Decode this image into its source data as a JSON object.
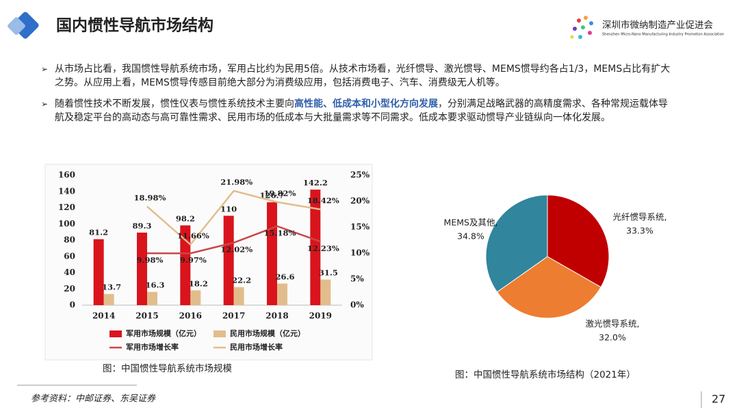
{
  "header": {
    "title": "国内惯性导航市场结构",
    "org_name": "深圳市微纳制造产业促进会",
    "org_name_en": "Shenzhen Micro-Nano Manufacturing Industry Promotion Association"
  },
  "bullets": [
    [
      "从市场占比看，我国惯性导航系统市场，军用占比约为民用5倍。从技术市场看，光纤惯导、激光惯导、MEMS惯导约各占1/3，MEMS占比有扩大之势。从应用上看，MEMS惯导传感目前绝大部分为消费级应用，包括消费电子、汽车、消费级无人机等。"
    ],
    [
      "随着惯性技术不断发展，惯性仪表与惯性系统技术主要向",
      "高性能、低成本和小型化方向发展",
      "，分别满足战略武器的高精度需求、各种常规运载体导航及稳定平台的高动态与高可靠性需求、民用市场的低成本与大批量需求等不同需求。低成本要求驱动惯导产业链纵向一体化发展。"
    ]
  ],
  "chart_data": [
    {
      "type": "bar-line",
      "caption": "图：中国惯性导航系统市场规模",
      "categories": [
        "2014",
        "2015",
        "2016",
        "2017",
        "2018",
        "2019"
      ],
      "ylim": [
        0,
        160
      ],
      "yticks": [
        0,
        20,
        40,
        60,
        80,
        100,
        120,
        140,
        160
      ],
      "y2lim": [
        0,
        25
      ],
      "y2ticks": [
        {
          "value": 0,
          "label": "0%"
        },
        {
          "value": 5,
          "label": "5%"
        },
        {
          "value": 10,
          "label": "10%"
        },
        {
          "value": 15,
          "label": "15%"
        },
        {
          "value": 20,
          "label": "20%"
        },
        {
          "value": 25,
          "label": "25%"
        }
      ],
      "series": [
        {
          "name": "军用市场规模（亿元）",
          "kind": "bar",
          "color": "#d9141c",
          "values": [
            81.2,
            89.3,
            98.2,
            110,
            126.7,
            142.2
          ]
        },
        {
          "name": "民用市场规模（亿元）",
          "kind": "bar",
          "color": "#e2bd8c",
          "values": [
            13.7,
            16.3,
            18.2,
            22.2,
            26.6,
            31.5
          ]
        },
        {
          "name": "军用市场增长率",
          "kind": "line",
          "axis": "y2",
          "color": "#c9474a",
          "values": [
            null,
            9.98,
            9.97,
            12.02,
            15.18,
            12.23
          ],
          "value_labels": [
            null,
            "9.98%",
            "9.97%",
            "12.02%",
            "15.18%",
            "12.23%"
          ]
        },
        {
          "name": "民用市场增长率",
          "kind": "line",
          "axis": "y2",
          "color": "#e2bd8c",
          "values": [
            null,
            18.98,
            11.66,
            21.98,
            19.82,
            18.42
          ],
          "value_labels": [
            null,
            "18.98%",
            "11.66%",
            "21.98%",
            "19.82%",
            "18.42%"
          ]
        }
      ]
    },
    {
      "type": "pie",
      "caption": "图：中国惯性导航系统市场结构（2021年）",
      "categories": [
        "光纤惯导系统,",
        "激光惯导系统,",
        "MEMS及其他,"
      ],
      "values": [
        33.3,
        32.0,
        34.8
      ],
      "value_labels": [
        "33.3%",
        "32.0%",
        "34.8%"
      ],
      "colors": [
        "#c00000",
        "#ed7d31",
        "#31859c"
      ]
    }
  ],
  "footer": {
    "source": "参考资料：中邮证券、东吴证券",
    "page_number": "27"
  }
}
